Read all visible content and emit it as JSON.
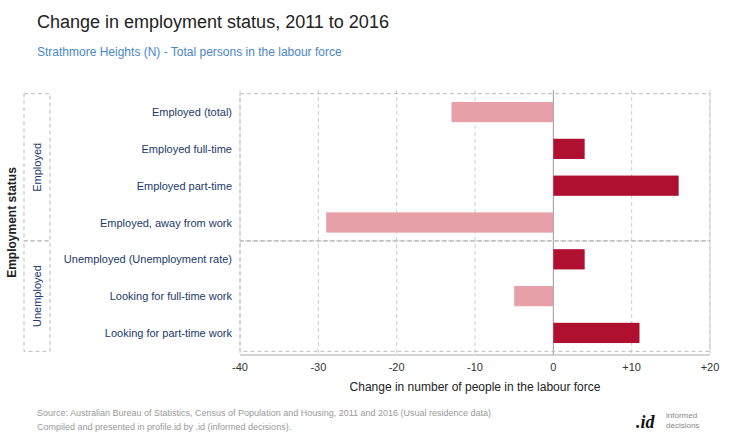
{
  "chart_data": {
    "type": "bar",
    "orientation": "horizontal",
    "title": "Change in employment status, 2011 to 2016",
    "subtitle": "Strathmore Heights (N) - Total persons in the labour force",
    "xlabel": "Change in number of people in the labour force",
    "ylabel": "Employment status",
    "categories": [
      "Employed (total)",
      "Employed full-time",
      "Employed part-time",
      "Employed, away from work",
      "Unemployed (Unemployment rate)",
      "Looking for full-time work",
      "Looking for part-time work"
    ],
    "values": [
      -13,
      4,
      16,
      -29,
      4,
      -5,
      11
    ],
    "colors": [
      "#e8a0a8",
      "#b01030",
      "#b01030",
      "#e8a0a8",
      "#b01030",
      "#e8a0a8",
      "#b01030"
    ],
    "xlim": [
      -40,
      20
    ],
    "xticks": [
      -40,
      -30,
      -20,
      -10,
      0,
      {
        "value": 10,
        "label": "+10"
      },
      {
        "value": 20,
        "label": "+20"
      }
    ],
    "grid": true,
    "annotations": [
      "Employed",
      "Unemployed",
      "Source: Australian Bureau of Statistics, Census of Population and Housing, 2011 and 2016 (Usual residence data)",
      "Compiled and presented in profile.id by .id (informed decisions).",
      ".id",
      "informed\ndecisions"
    ]
  }
}
